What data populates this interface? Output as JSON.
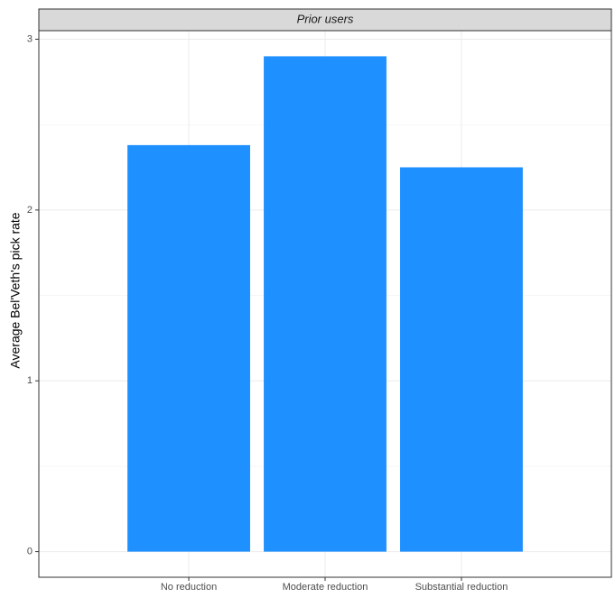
{
  "chart_data": {
    "type": "bar",
    "strip": "Prior users",
    "ylabel": "Average Bel'Veth's pick rate",
    "categories": [
      "No reduction",
      "Moderate reduction",
      "Substantial reduction"
    ],
    "values": [
      2.38,
      2.9,
      2.25
    ],
    "color": "#1e90ff",
    "ylim": [
      -0.15,
      3.05
    ],
    "yticks": [
      0,
      1,
      2,
      3
    ],
    "yminor": [
      0.5,
      1.5,
      2.5
    ],
    "grid": true
  }
}
